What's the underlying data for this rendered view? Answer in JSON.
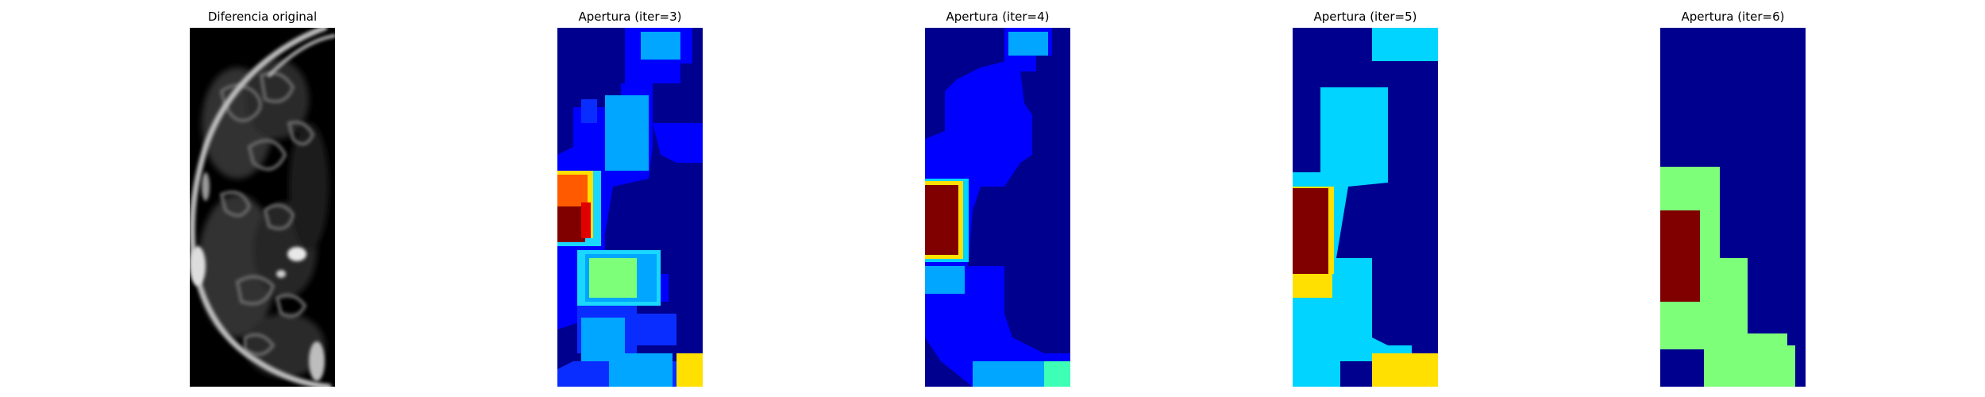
{
  "panels": [
    {
      "title": "Diferencia original",
      "image": "grayscale MRI difference image with bright curved rim on left and dark blobs"
    },
    {
      "title": "Apertura (iter=3)",
      "image": "jet colormap segmentation, mostly blue with red-orange block on left and green/cyan squares"
    },
    {
      "title": "Apertura (iter=4)",
      "image": "jet colormap segmentation, navy and blue regions with dark red block on left"
    },
    {
      "title": "Apertura (iter=5)",
      "image": "jet colormap segmentation, navy background with cyan regions, dark red block and yellow blocks"
    },
    {
      "title": "Apertura (iter=6)",
      "image": "jet colormap segmentation, navy background with light green regions and dark red block"
    }
  ],
  "colors": {
    "navy": "#00008f",
    "blue": "#0000ff",
    "mid_blue": "#0a2dff",
    "sky_blue": "#00a6ff",
    "cyan": "#00d4ff",
    "light_cyan": "#1ad7ff",
    "green": "#7dff7a",
    "teal_green": "#3dffb6",
    "yellow": "#ffe000",
    "orange": "#ff5a00",
    "dark_red": "#800000",
    "red": "#e00000"
  }
}
